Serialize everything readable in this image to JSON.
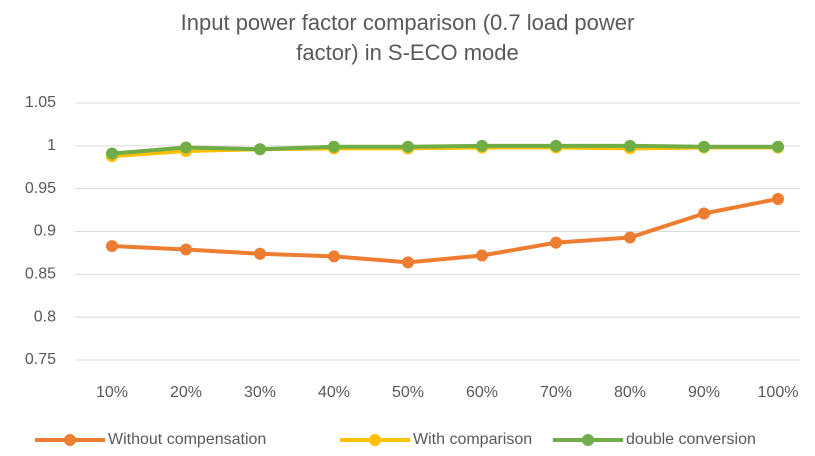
{
  "chart_data": {
    "type": "line",
    "title": "Input power factor comparison (0.7 load power factor) in S-ECO mode",
    "categories": [
      "10%",
      "20%",
      "30%",
      "40%",
      "50%",
      "60%",
      "70%",
      "80%",
      "90%",
      "100%"
    ],
    "series": [
      {
        "name": "Without compensation",
        "color": "#ed7d31",
        "values": [
          0.883,
          0.879,
          0.874,
          0.871,
          0.864,
          0.872,
          0.887,
          0.893,
          0.921,
          0.938
        ]
      },
      {
        "name": "With comparison",
        "color": "#ffc000",
        "values": [
          0.988,
          0.994,
          0.996,
          0.997,
          0.997,
          0.998,
          0.998,
          0.997,
          0.998,
          0.998
        ]
      },
      {
        "name": "double conversion",
        "color": "#70ad47",
        "values": [
          0.991,
          0.998,
          0.996,
          0.999,
          0.999,
          1.0,
          1.0,
          1.0,
          0.999,
          0.999
        ]
      }
    ],
    "ylim": [
      0.75,
      1.05
    ],
    "yticks": [
      0.75,
      0.8,
      0.85,
      0.9,
      0.95,
      1,
      1.05
    ],
    "grid": true,
    "legend": "bottom"
  }
}
